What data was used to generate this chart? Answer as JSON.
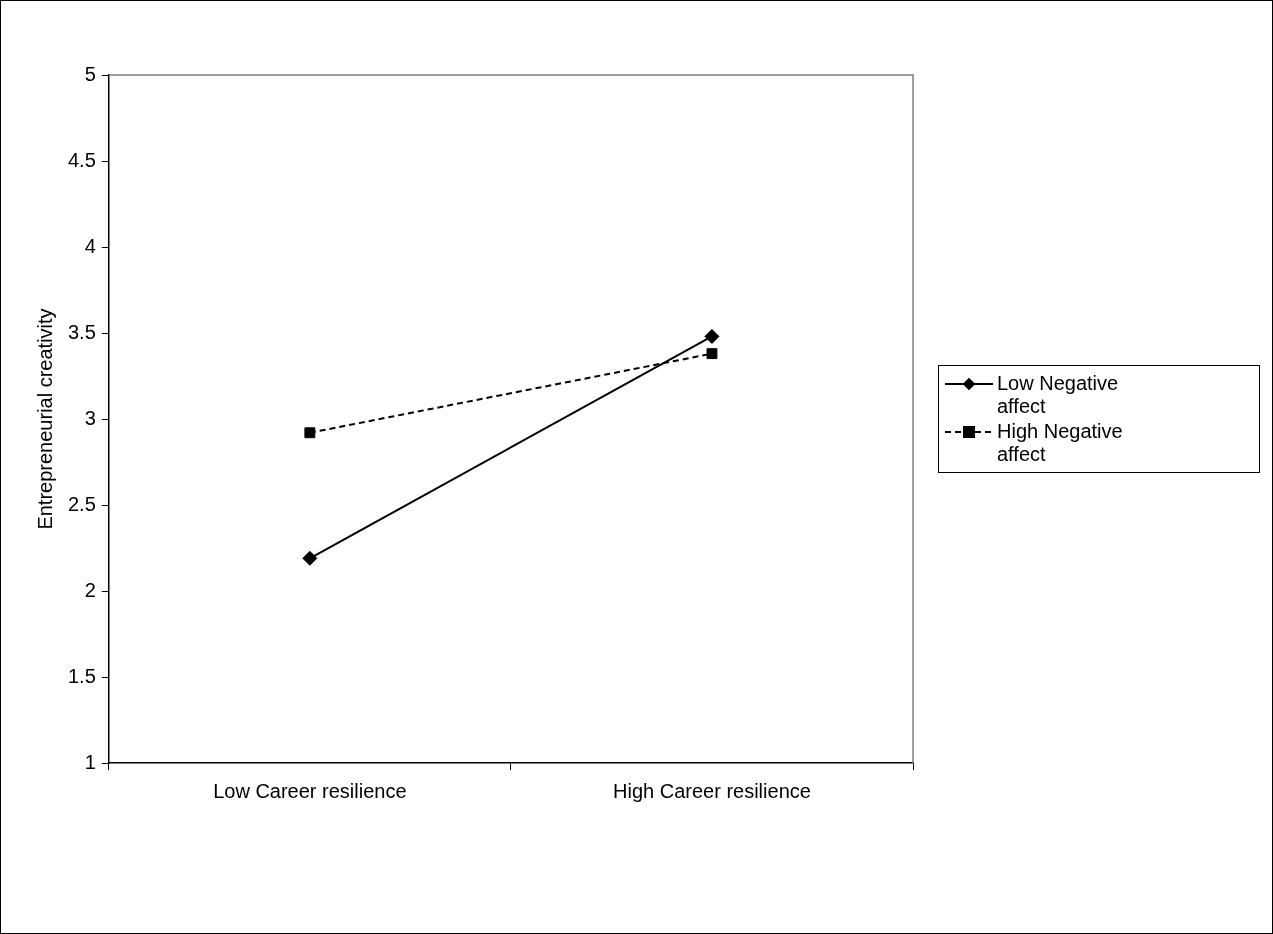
{
  "chart_data": {
    "type": "line",
    "ylabel": "Entrepreneurial creativity",
    "categories": [
      "Low Career resilience",
      "High Career resilience"
    ],
    "series": [
      {
        "name": "Low Negative affect",
        "color": "#000000",
        "values": [
          2.19,
          3.48
        ],
        "marker": "diamond",
        "line_style": "solid"
      },
      {
        "name": "High Negative affect",
        "color": "#000000",
        "values": [
          2.92,
          3.38
        ],
        "marker": "square",
        "line_style": "dashed"
      }
    ],
    "ylim": [
      1,
      5
    ],
    "yticks": [
      1,
      1.5,
      2,
      2.5,
      3,
      3.5,
      4,
      4.5,
      5
    ],
    "grid": false,
    "legend": "right"
  }
}
